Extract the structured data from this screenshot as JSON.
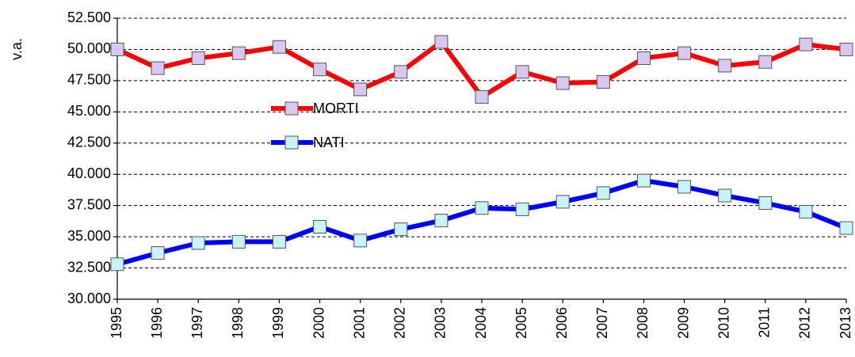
{
  "chart_data": {
    "type": "line",
    "y_label": "v.a.",
    "categories": [
      "1995",
      "1996",
      "1997",
      "1998",
      "1999",
      "2000",
      "2001",
      "2002",
      "2003",
      "2004",
      "2005",
      "2006",
      "2007",
      "2008",
      "2009",
      "2010",
      "2011",
      "2012",
      "2013"
    ],
    "series": [
      {
        "name": "MORTI",
        "color": "#ff0000",
        "marker_fill": "#d8c8f0",
        "values": [
          50000,
          48500,
          49300,
          49700,
          50200,
          48400,
          46800,
          48200,
          50600,
          46200,
          48200,
          47300,
          47400,
          49300,
          49700,
          48700,
          49000,
          50400,
          50000
        ]
      },
      {
        "name": "NATI",
        "color": "#0000ff",
        "marker_fill": "#c8f4f8",
        "values": [
          32800,
          33700,
          34500,
          34600,
          34600,
          35800,
          34700,
          35600,
          36300,
          37300,
          37200,
          37800,
          38500,
          39500,
          39000,
          38300,
          37700,
          37000,
          35700
        ]
      }
    ],
    "ylim": [
      30000,
      52500
    ],
    "yticks": [
      {
        "value": 30000,
        "label": "30.000"
      },
      {
        "value": 32500,
        "label": "32.500"
      },
      {
        "value": 35000,
        "label": "35.000"
      },
      {
        "value": 37500,
        "label": "37.500"
      },
      {
        "value": 40000,
        "label": "40.000"
      },
      {
        "value": 42500,
        "label": "42.500"
      },
      {
        "value": 45000,
        "label": "45.000"
      },
      {
        "value": 47500,
        "label": "47.500"
      },
      {
        "value": 50000,
        "label": "50.000"
      },
      {
        "value": 52500,
        "label": "52.500"
      }
    ],
    "grid": true
  }
}
